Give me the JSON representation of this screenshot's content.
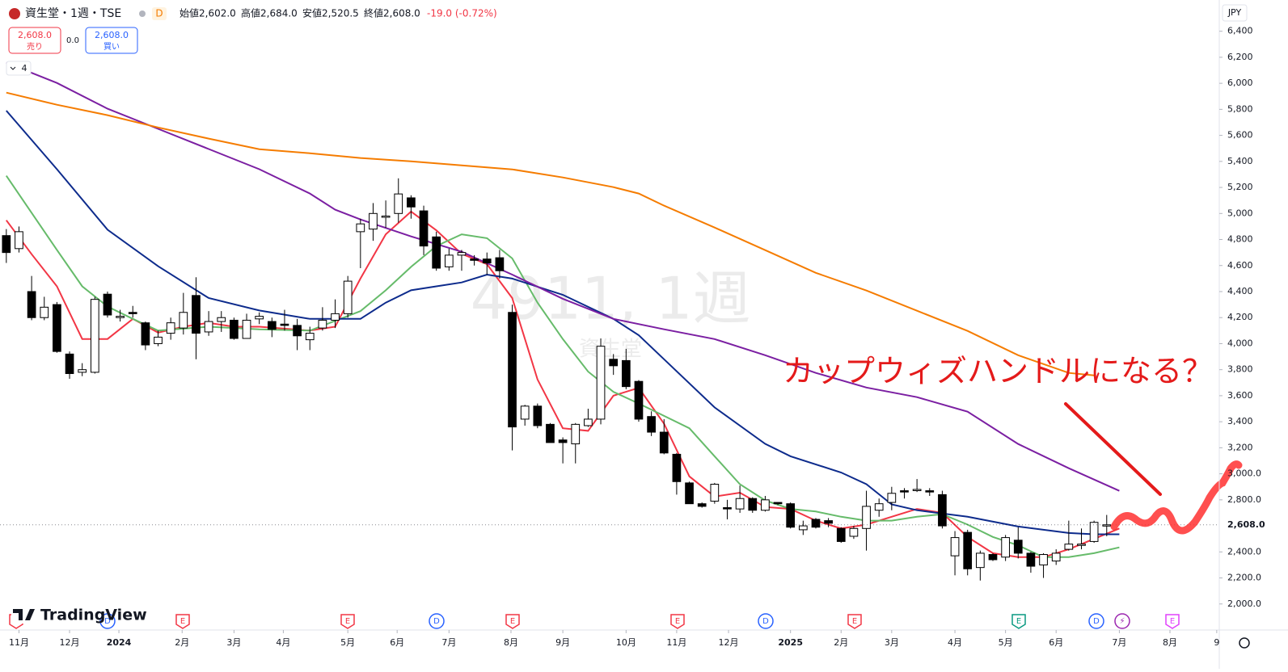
{
  "toolbar": {
    "symbol": "資生堂・1週・TSE",
    "interval_badge": "D",
    "open": "始値2,602.0",
    "high": "高値2,684.0",
    "low": "安値2,520.5",
    "close": "終値2,608.0",
    "change": "-19.0 (-0.72%)",
    "sell_price": "2,608.0",
    "sell_label": "売り",
    "spread": "0.0",
    "buy_price": "2,608.0",
    "buy_label": "買い",
    "indicator_count": "4"
  },
  "watermark": {
    "main": "4911, 1週",
    "sub": "資生堂"
  },
  "logo": "TradingView",
  "currency": "JPY",
  "last_price_label": "2,608.0",
  "event_markers": [
    "E",
    "D",
    "E",
    "E",
    "D",
    "E",
    "E",
    "D",
    "E",
    "E",
    "D",
    "⚡",
    "E"
  ],
  "chart_data": {
    "type": "candlestick",
    "annotation": "カップウィズハンドルになる？",
    "x": [
      0,
      1,
      2,
      3,
      4,
      5,
      6,
      7,
      8,
      9,
      10,
      11,
      12,
      13,
      14,
      15,
      16,
      17,
      18,
      19,
      20,
      21,
      22,
      23,
      24,
      25,
      26,
      27,
      28,
      29,
      30,
      31,
      32,
      33,
      34,
      35,
      36,
      37,
      38,
      39,
      40,
      41,
      42,
      43,
      44,
      45,
      46,
      47,
      48,
      49,
      50,
      51,
      52,
      53,
      54,
      55,
      56,
      57,
      58,
      59,
      60,
      61,
      62,
      63,
      64,
      65,
      66,
      67,
      68,
      69,
      70,
      71,
      72,
      73,
      74,
      75,
      76,
      77,
      78,
      79,
      80,
      81,
      82,
      83,
      84,
      85,
      86,
      87
    ],
    "open": [
      4830,
      4730,
      4400,
      4200,
      4300,
      3920,
      3780,
      3780,
      4380,
      4200,
      4240,
      4160,
      4000,
      4080,
      4120,
      4370,
      4090,
      4170,
      4180,
      4040,
      4190,
      4170,
      4150,
      4140,
      4030,
      4120,
      4180,
      4230,
      4860,
      4880,
      4980,
      5000,
      5120,
      5020,
      4820,
      4590,
      4680,
      4650,
      4650,
      4660,
      4240,
      3420,
      3520,
      3380,
      3260,
      3230,
      3370,
      3420,
      3880,
      3870,
      3710,
      3440,
      3320,
      3150,
      2930,
      2770,
      2790,
      2740,
      2730,
      2810,
      2720,
      2780,
      2770,
      2570,
      2650,
      2640,
      2580,
      2520,
      2580,
      2720,
      2780,
      2870,
      2880,
      2870,
      2840,
      2370,
      2550,
      2280,
      2380,
      2360,
      2490,
      2390,
      2300,
      2330,
      2420,
      2450,
      2480,
      2602
    ],
    "high": [
      4880,
      4900,
      4520,
      4360,
      4320,
      3940,
      3850,
      4360,
      4400,
      4260,
      4290,
      4170,
      4100,
      4200,
      4390,
      4510,
      4250,
      4250,
      4200,
      4230,
      4240,
      4200,
      4260,
      4190,
      4130,
      4280,
      4340,
      4520,
      4960,
      5080,
      5100,
      5270,
      5140,
      5060,
      4860,
      4730,
      4720,
      4680,
      4700,
      4720,
      4300,
      3530,
      3540,
      3390,
      3280,
      3390,
      3500,
      4040,
      3920,
      3960,
      3720,
      3480,
      3420,
      3160,
      2940,
      2780,
      2930,
      2800,
      2910,
      2820,
      2830,
      2780,
      2780,
      2640,
      2660,
      2660,
      2590,
      2600,
      2870,
      2810,
      2900,
      2890,
      2960,
      2890,
      2870,
      2560,
      2570,
      2410,
      2390,
      2530,
      2590,
      2400,
      2390,
      2420,
      2640,
      2580,
      2640,
      2684
    ],
    "low": [
      4620,
      4700,
      4180,
      4180,
      3930,
      3730,
      3750,
      3770,
      4200,
      4170,
      4200,
      3950,
      3980,
      4030,
      4070,
      3880,
      4060,
      4090,
      4030,
      4040,
      4150,
      4050,
      4100,
      3950,
      3950,
      4100,
      4120,
      4200,
      4580,
      4790,
      4890,
      4930,
      4960,
      4680,
      4560,
      4560,
      4560,
      4600,
      4530,
      4500,
      3180,
      3370,
      3350,
      3240,
      3080,
      3080,
      3360,
      3380,
      3760,
      3650,
      3400,
      3290,
      3150,
      2840,
      2770,
      2740,
      2770,
      2650,
      2700,
      2700,
      2710,
      2760,
      2580,
      2530,
      2580,
      2590,
      2470,
      2500,
      2410,
      2670,
      2720,
      2810,
      2860,
      2830,
      2580,
      2220,
      2220,
      2180,
      2330,
      2330,
      2350,
      2240,
      2200,
      2300,
      2410,
      2420,
      2470,
      2520.5
    ],
    "close": [
      4700,
      4860,
      4200,
      4280,
      3940,
      3770,
      3800,
      4340,
      4220,
      4210,
      4230,
      3990,
      4050,
      4160,
      4240,
      4080,
      4170,
      4200,
      4040,
      4180,
      4210,
      4110,
      4140,
      4060,
      4080,
      4180,
      4230,
      4480,
      4920,
      5000,
      4980,
      5150,
      5050,
      4750,
      4580,
      4680,
      4700,
      4640,
      4620,
      4560,
      3360,
      3520,
      3370,
      3240,
      3240,
      3380,
      3420,
      3980,
      3830,
      3670,
      3420,
      3320,
      3160,
      2940,
      2770,
      2750,
      2920,
      2730,
      2810,
      2720,
      2800,
      2770,
      2590,
      2600,
      2590,
      2620,
      2480,
      2580,
      2750,
      2770,
      2850,
      2860,
      2880,
      2860,
      2600,
      2510,
      2270,
      2390,
      2340,
      2510,
      2390,
      2290,
      2380,
      2390,
      2460,
      2460,
      2627,
      2608
    ],
    "up_color": "#ffffff",
    "down_color": "#000000",
    "outline_color": "#000000",
    "series": [
      {
        "color": "#f23645",
        "x": [
          0,
          2,
          4,
          6,
          8,
          10,
          12,
          14,
          16,
          18,
          20,
          22,
          24,
          26,
          28,
          30,
          32,
          34,
          36,
          38,
          40,
          42,
          44,
          46,
          48,
          50,
          52,
          54,
          56,
          58,
          60,
          62,
          64,
          66,
          68,
          70,
          72,
          74,
          76,
          78,
          80,
          82,
          84,
          86,
          88
        ],
        "values": [
          4948,
          4687,
          4440,
          4036,
          4036,
          4190,
          4085,
          4130,
          4160,
          4130,
          4130,
          4115,
          4100,
          4130,
          4500,
          4840,
          5015,
          4870,
          4690,
          4610,
          4350,
          3725,
          3350,
          3330,
          3600,
          3660,
          3385,
          2980,
          2825,
          2855,
          2745,
          2730,
          2640,
          2580,
          2610,
          2670,
          2730,
          2700,
          2515,
          2390,
          2360,
          2360,
          2420,
          2500,
          2580
        ]
      },
      {
        "color": "#66bb6a",
        "x": [
          0,
          4,
          6,
          8,
          10,
          12,
          16,
          20,
          24,
          28,
          30,
          32,
          34,
          36,
          38,
          40,
          42,
          44,
          46,
          48,
          50,
          52,
          54,
          56,
          58,
          60,
          62,
          64,
          66,
          68,
          70,
          72,
          74,
          76,
          78,
          80,
          82,
          84,
          86,
          88
        ],
        "values": [
          5290,
          4720,
          4440,
          4285,
          4190,
          4100,
          4130,
          4110,
          4100,
          4250,
          4410,
          4590,
          4750,
          4840,
          4810,
          4655,
          4315,
          4035,
          3785,
          3630,
          3540,
          3445,
          3350,
          3135,
          2920,
          2795,
          2730,
          2710,
          2670,
          2640,
          2640,
          2670,
          2690,
          2610,
          2515,
          2450,
          2360,
          2360,
          2390,
          2435
        ]
      },
      {
        "color": "#0d2b8c",
        "x": [
          0,
          4,
          8,
          12,
          16,
          20,
          24,
          28,
          30,
          32,
          34,
          36,
          38,
          40,
          44,
          48,
          50,
          52,
          56,
          60,
          62,
          66,
          68,
          70,
          72,
          76,
          80,
          84,
          86,
          88
        ],
        "values": [
          5790,
          5340,
          4875,
          4595,
          4350,
          4255,
          4190,
          4190,
          4315,
          4410,
          4440,
          4470,
          4530,
          4500,
          4375,
          4190,
          4065,
          3880,
          3510,
          3230,
          3135,
          3010,
          2920,
          2765,
          2720,
          2670,
          2595,
          2545,
          2535,
          2535
        ]
      },
      {
        "color": "#7b1fa2",
        "x": [
          0,
          4,
          8,
          12,
          16,
          20,
          24,
          26,
          28,
          32,
          36,
          40,
          44,
          48,
          52,
          56,
          60,
          64,
          68,
          72,
          76,
          80,
          84,
          88
        ],
        "values": [
          6158,
          6003,
          5805,
          5650,
          5495,
          5340,
          5153,
          5029,
          4954,
          4824,
          4706,
          4530,
          4345,
          4190,
          4110,
          4035,
          3911,
          3775,
          3663,
          3589,
          3477,
          3229,
          3043,
          2869
        ]
      },
      {
        "color": "#f57c00",
        "x": [
          0,
          4,
          8,
          12,
          16,
          20,
          24,
          28,
          32,
          36,
          40,
          44,
          48,
          50,
          52,
          56,
          60,
          64,
          68,
          72,
          76,
          80,
          84,
          86
        ],
        "values": [
          5928,
          5835,
          5755,
          5661,
          5575,
          5494,
          5463,
          5426,
          5401,
          5370,
          5339,
          5277,
          5202,
          5153,
          5060,
          4892,
          4718,
          4544,
          4408,
          4253,
          4098,
          3911,
          3775,
          3756
        ]
      }
    ],
    "xlim": [
      -0.5,
      95.9
    ],
    "xticks": [
      {
        "value": 1,
        "label": "11月"
      },
      {
        "value": 5,
        "label": "12月"
      },
      {
        "value": 8.9,
        "label": "2024"
      },
      {
        "value": 13.9,
        "label": "2月"
      },
      {
        "value": 18,
        "label": "3月"
      },
      {
        "value": 21.9,
        "label": "4月"
      },
      {
        "value": 27,
        "label": "5月"
      },
      {
        "value": 30.9,
        "label": "6月"
      },
      {
        "value": 35,
        "label": "7月"
      },
      {
        "value": 39.9,
        "label": "8月"
      },
      {
        "value": 44,
        "label": "9月"
      },
      {
        "value": 49,
        "label": "10月"
      },
      {
        "value": 53,
        "label": "11月"
      },
      {
        "value": 57.1,
        "label": "12月"
      },
      {
        "value": 62,
        "label": "2025"
      },
      {
        "value": 66,
        "label": "2月"
      },
      {
        "value": 70,
        "label": "3月"
      },
      {
        "value": 75,
        "label": "4月"
      },
      {
        "value": 79,
        "label": "5月"
      },
      {
        "value": 83,
        "label": "6月"
      },
      {
        "value": 88,
        "label": "7月"
      },
      {
        "value": 92,
        "label": "8月"
      },
      {
        "value": 95.7,
        "label": "9"
      }
    ],
    "ylim": [
      1800,
      6640
    ],
    "yticks": [
      {
        "value": 2000,
        "label": "2,000.0"
      },
      {
        "value": 2200,
        "label": "2,200.0"
      },
      {
        "value": 2400,
        "label": "2,400.0"
      },
      {
        "value": 2800,
        "label": "2,800.0"
      },
      {
        "value": 3000,
        "label": "3,000.0"
      },
      {
        "value": 3200,
        "label": "3,200"
      },
      {
        "value": 3400,
        "label": "3,400"
      },
      {
        "value": 3600,
        "label": "3,600"
      },
      {
        "value": 3800,
        "label": "3,800"
      },
      {
        "value": 4000,
        "label": "4,000"
      },
      {
        "value": 4200,
        "label": "4,200"
      },
      {
        "value": 4400,
        "label": "4,400"
      },
      {
        "value": 4600,
        "label": "4,600"
      },
      {
        "value": 4800,
        "label": "4,800"
      },
      {
        "value": 5000,
        "label": "5,000"
      },
      {
        "value": 5200,
        "label": "5,200"
      },
      {
        "value": 5400,
        "label": "5,400"
      },
      {
        "value": 5600,
        "label": "5,600"
      },
      {
        "value": 5800,
        "label": "5,800"
      },
      {
        "value": 6000,
        "label": "6,000"
      },
      {
        "value": 6200,
        "label": "6,200"
      },
      {
        "value": 6400,
        "label": "6,400"
      }
    ],
    "last_price": 2608,
    "grid": false
  }
}
